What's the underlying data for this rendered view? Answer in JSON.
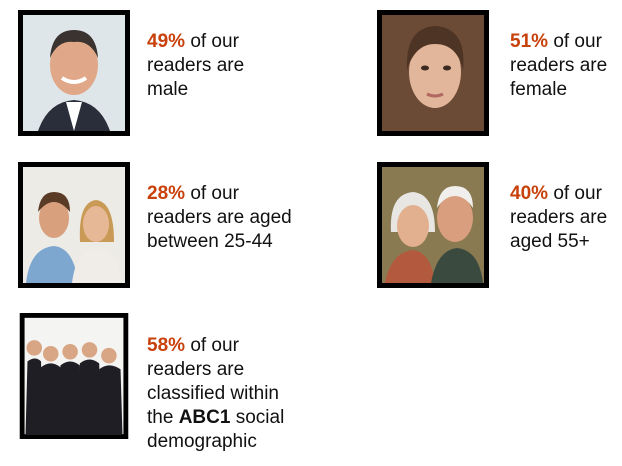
{
  "items": [
    {
      "stat": "49%",
      "lines": [
        "of our",
        "readers are",
        "male"
      ]
    },
    {
      "stat": "51%",
      "lines": [
        "of our",
        "readers are",
        "female"
      ]
    },
    {
      "stat": "28%",
      "lines": [
        "of our",
        "readers are aged",
        "between 25-44"
      ]
    },
    {
      "stat": "40%",
      "lines": [
        "of our",
        "readers are",
        "aged 55+"
      ]
    },
    {
      "stat": "58%",
      "lines": [
        "of our",
        "readers are",
        "classified within"
      ],
      "emphasis_line": {
        "before": "the",
        "bold": "ABC1",
        "after": "social"
      },
      "last_line": "demographic"
    }
  ]
}
